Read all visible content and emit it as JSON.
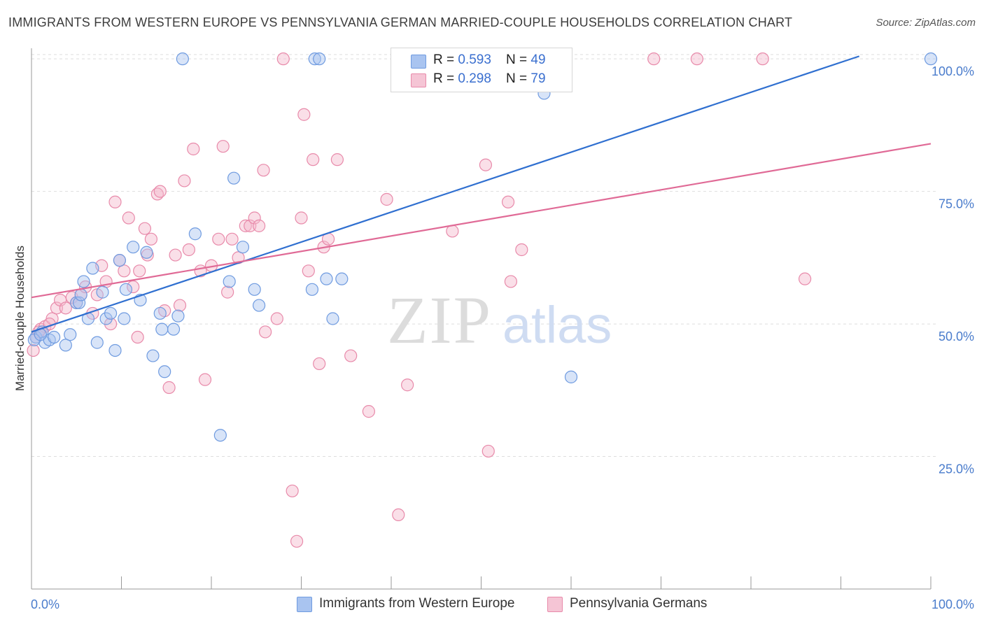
{
  "title": "IMMIGRANTS FROM WESTERN EUROPE VS PENNSYLVANIA GERMAN MARRIED-COUPLE HOUSEHOLDS CORRELATION CHART",
  "source": "Source: ZipAtlas.com",
  "watermark": {
    "zip": "ZIP",
    "atlas": "atlas"
  },
  "legend_top": {
    "rows": [
      {
        "r_label": "R = ",
        "r_value": "0.593",
        "n_label": "N = ",
        "n_value": "49"
      },
      {
        "r_label": "R = ",
        "r_value": "0.298",
        "n_label": "N = ",
        "n_value": "79"
      }
    ]
  },
  "legend_bottom": {
    "items": [
      {
        "label": "Immigrants from Western Europe"
      },
      {
        "label": "Pennsylvania Germans"
      }
    ]
  },
  "colors": {
    "blue_fill": "#a9c4f0",
    "blue_stroke": "#6f9be0",
    "blue_line": "#2f6fd0",
    "pink_fill": "#f5b8cc",
    "pink_stroke": "#e88aaa",
    "pink_line": "#e06a96",
    "tick_text": "#4a7ccc",
    "grid": "#dedede"
  },
  "chart_data": {
    "type": "scatter",
    "title": "IMMIGRANTS FROM WESTERN EUROPE VS PENNSYLVANIA GERMAN MARRIED-COUPLE HOUSEHOLDS CORRELATION CHART",
    "xlabel": "",
    "ylabel": "Married-couple Households",
    "xlim": [
      0,
      100
    ],
    "ylim": [
      0,
      102
    ],
    "x_tick_labels": [
      "0.0%",
      "100.0%"
    ],
    "y_ticks": [
      {
        "value": 25,
        "label": "25.0%"
      },
      {
        "value": 50,
        "label": "50.0%"
      },
      {
        "value": 75,
        "label": "75.0%"
      },
      {
        "value": 100,
        "label": "100.0%"
      }
    ],
    "grid": true,
    "series": [
      {
        "name": "Immigrants from Western Europe",
        "color": "blue",
        "r": 0.593,
        "n": 49,
        "trend": {
          "x0": 0,
          "y0": 48.5,
          "x1": 100,
          "y1": 105
        },
        "points": [
          [
            0.5,
            47.5
          ],
          [
            1.2,
            48.5
          ],
          [
            1.5,
            46.5
          ],
          [
            2.0,
            47.0
          ],
          [
            2.5,
            47.5
          ],
          [
            3.8,
            46.0
          ],
          [
            4.3,
            48.0
          ],
          [
            5.0,
            54.0
          ],
          [
            5.3,
            54.0
          ],
          [
            5.5,
            55.5
          ],
          [
            5.8,
            58.0
          ],
          [
            6.3,
            51.0
          ],
          [
            6.8,
            60.5
          ],
          [
            7.3,
            46.5
          ],
          [
            7.9,
            56.0
          ],
          [
            8.3,
            51.0
          ],
          [
            8.8,
            52.0
          ],
          [
            9.3,
            45.0
          ],
          [
            9.8,
            62.0
          ],
          [
            10.3,
            51.0
          ],
          [
            10.5,
            56.5
          ],
          [
            11.3,
            64.5
          ],
          [
            12.1,
            54.5
          ],
          [
            12.8,
            63.5
          ],
          [
            13.5,
            44.0
          ],
          [
            14.3,
            52.0
          ],
          [
            14.5,
            49.0
          ],
          [
            14.8,
            41.0
          ],
          [
            15.8,
            49.0
          ],
          [
            16.3,
            51.5
          ],
          [
            16.8,
            100.0
          ],
          [
            18.2,
            67.0
          ],
          [
            21.0,
            29.0
          ],
          [
            22.0,
            58.0
          ],
          [
            22.5,
            77.5
          ],
          [
            23.5,
            64.5
          ],
          [
            24.8,
            56.5
          ],
          [
            25.3,
            53.5
          ],
          [
            31.2,
            56.5
          ],
          [
            31.5,
            100.0
          ],
          [
            32.0,
            100.0
          ],
          [
            32.8,
            58.5
          ],
          [
            33.5,
            51.0
          ],
          [
            34.5,
            58.5
          ],
          [
            57.0,
            93.5
          ],
          [
            60.0,
            40.0
          ],
          [
            100.0,
            100.0
          ],
          [
            0.3,
            47.0
          ],
          [
            1.0,
            48.0
          ]
        ]
      },
      {
        "name": "Pennsylvania Germans",
        "color": "pink",
        "r": 0.298,
        "n": 79,
        "trend": {
          "x0": 0,
          "y0": 55.0,
          "x1": 100,
          "y1": 84.0
        },
        "points": [
          [
            0.2,
            45.0
          ],
          [
            0.5,
            47.5
          ],
          [
            1.0,
            49.0
          ],
          [
            1.5,
            49.5
          ],
          [
            2.3,
            51.0
          ],
          [
            2.8,
            53.0
          ],
          [
            3.2,
            54.5
          ],
          [
            3.8,
            53.0
          ],
          [
            4.5,
            55.0
          ],
          [
            5.0,
            54.0
          ],
          [
            5.5,
            55.5
          ],
          [
            6.0,
            57.0
          ],
          [
            6.8,
            52.0
          ],
          [
            7.3,
            55.5
          ],
          [
            7.8,
            61.0
          ],
          [
            8.3,
            58.0
          ],
          [
            8.8,
            50.0
          ],
          [
            9.3,
            73.0
          ],
          [
            9.8,
            62.0
          ],
          [
            10.3,
            60.0
          ],
          [
            10.8,
            70.0
          ],
          [
            11.3,
            57.0
          ],
          [
            11.8,
            47.5
          ],
          [
            12.0,
            60.0
          ],
          [
            12.6,
            68.0
          ],
          [
            12.9,
            63.0
          ],
          [
            13.3,
            66.0
          ],
          [
            14.0,
            74.5
          ],
          [
            14.3,
            75.0
          ],
          [
            14.8,
            52.5
          ],
          [
            15.3,
            38.0
          ],
          [
            16.0,
            63.0
          ],
          [
            16.5,
            53.5
          ],
          [
            17.0,
            77.0
          ],
          [
            17.5,
            64.0
          ],
          [
            18.0,
            83.0
          ],
          [
            18.8,
            60.0
          ],
          [
            19.3,
            39.5
          ],
          [
            20.0,
            61.0
          ],
          [
            20.8,
            66.0
          ],
          [
            21.3,
            83.5
          ],
          [
            21.8,
            56.0
          ],
          [
            22.3,
            66.0
          ],
          [
            23.0,
            62.5
          ],
          [
            23.8,
            68.5
          ],
          [
            24.3,
            68.5
          ],
          [
            24.8,
            70.0
          ],
          [
            25.3,
            68.5
          ],
          [
            25.8,
            79.0
          ],
          [
            26.0,
            48.5
          ],
          [
            27.3,
            51.0
          ],
          [
            28.0,
            100.0
          ],
          [
            29.0,
            18.5
          ],
          [
            29.5,
            9.0
          ],
          [
            30.0,
            70.0
          ],
          [
            30.3,
            89.5
          ],
          [
            30.8,
            60.0
          ],
          [
            31.3,
            81.0
          ],
          [
            32.0,
            42.5
          ],
          [
            32.5,
            64.5
          ],
          [
            33.0,
            66.0
          ],
          [
            34.0,
            81.0
          ],
          [
            35.5,
            44.0
          ],
          [
            37.5,
            33.5
          ],
          [
            39.5,
            73.5
          ],
          [
            40.8,
            14.0
          ],
          [
            41.8,
            38.5
          ],
          [
            46.8,
            67.5
          ],
          [
            50.5,
            80.0
          ],
          [
            50.8,
            26.0
          ],
          [
            53.0,
            73.0
          ],
          [
            53.3,
            58.0
          ],
          [
            54.5,
            64.0
          ],
          [
            69.2,
            100.0
          ],
          [
            74.0,
            100.0
          ],
          [
            81.3,
            100.0
          ],
          [
            86.0,
            58.5
          ],
          [
            0.8,
            48.5
          ],
          [
            2.0,
            50.0
          ]
        ]
      }
    ]
  }
}
